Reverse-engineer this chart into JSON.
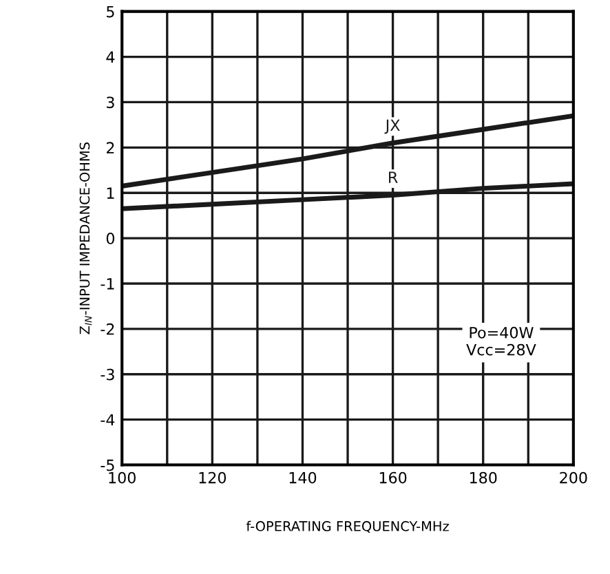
{
  "chart_data": {
    "type": "line",
    "xlabel": "f-OPERATING FREQUENCY-MHz",
    "ylabel": "Z$_{IN}$-INPUT IMPEDANCE-OHMS",
    "x": [
      100,
      120,
      140,
      160,
      180,
      200
    ],
    "series": [
      {
        "name": "JX",
        "color": "#1a1a1a",
        "values": [
          1.15,
          1.45,
          1.75,
          2.1,
          2.4,
          2.7
        ]
      },
      {
        "name": "R",
        "color": "#1a1a1a",
        "values": [
          0.65,
          0.75,
          0.85,
          0.95,
          1.1,
          1.2
        ]
      }
    ],
    "xlim": [
      100,
      200
    ],
    "ylim": [
      -5,
      5
    ],
    "xticks": [
      100,
      {
        "value": 110,
        "label": null
      },
      120,
      {
        "value": 130,
        "label": null
      },
      140,
      {
        "value": 150,
        "label": null
      },
      160,
      {
        "value": 170,
        "label": null
      },
      180,
      {
        "value": 190,
        "label": null
      },
      200
    ],
    "yticks": [
      -5,
      -4,
      -3,
      -2,
      -1,
      0,
      1,
      2,
      3,
      4,
      5
    ],
    "grid": true,
    "legend": false,
    "marker": "none",
    "line_style": "solid",
    "annotations": [
      "Po=40W\nVcc=28V"
    ]
  }
}
